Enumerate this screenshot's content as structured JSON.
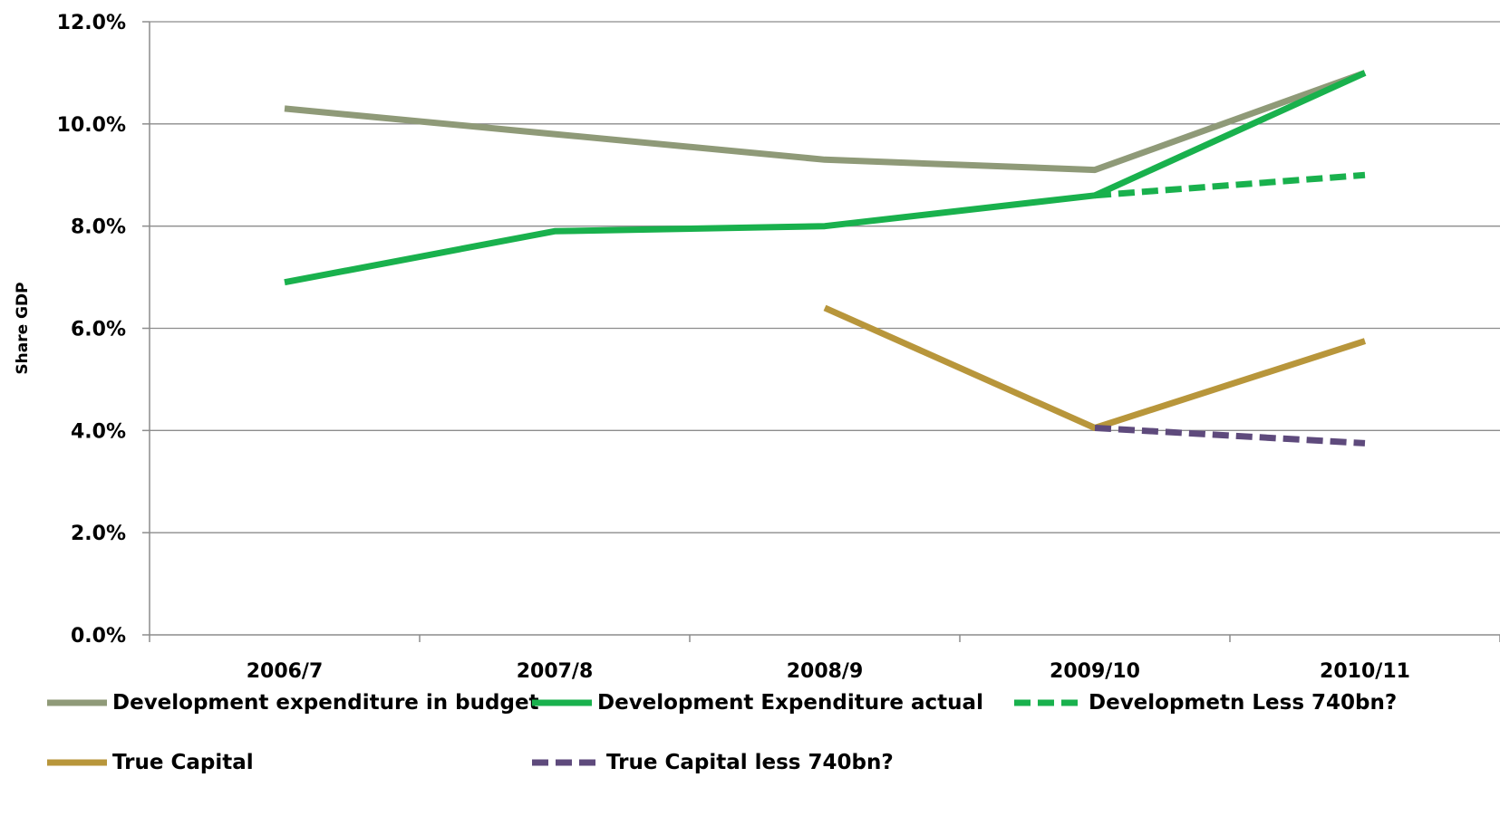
{
  "chart_data": {
    "type": "line",
    "ylabel": "Share GDP",
    "xlabel": "",
    "categories": [
      "2006/7",
      "2007/8",
      "2008/9",
      "2009/10",
      "2010/11"
    ],
    "ylim": [
      0,
      12
    ],
    "yticks": [
      "0.0%",
      "2.0%",
      "4.0%",
      "6.0%",
      "8.0%",
      "10.0%",
      "12.0%"
    ],
    "grid": true,
    "legend_position": "bottom",
    "series": [
      {
        "name": "Development expenditure in budget",
        "values": [
          10.3,
          9.8,
          9.3,
          9.1,
          11.0
        ],
        "color": "#8f9a78",
        "dash": false
      },
      {
        "name": "Development Expenditure actual",
        "values": [
          6.9,
          7.9,
          8.0,
          8.6,
          11.0
        ],
        "color": "#19b14d",
        "dash": false
      },
      {
        "name": "Developmetn Less 740bn?",
        "values": [
          null,
          null,
          null,
          8.6,
          9.0
        ],
        "color": "#19b14d",
        "dash": true
      },
      {
        "name": "True Capital",
        "values": [
          null,
          null,
          6.4,
          4.05,
          5.75
        ],
        "color": "#b8963b",
        "dash": false
      },
      {
        "name": "True Capital less 740bn?",
        "values": [
          null,
          null,
          null,
          4.05,
          3.75
        ],
        "color": "#5e4a7c",
        "dash": true
      }
    ]
  }
}
